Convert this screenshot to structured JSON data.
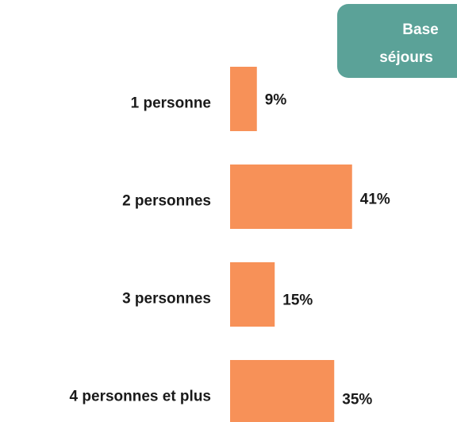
{
  "chart_data": {
    "type": "bar",
    "orientation": "horizontal",
    "annotation": [
      "Base",
      "séjours"
    ],
    "categories": [
      "1 personne",
      "2 personnes",
      "3 personnes",
      "4 personnes et plus"
    ],
    "values": [
      9,
      41,
      15,
      35
    ],
    "value_labels": [
      "9%",
      "41%",
      "15%",
      "35%"
    ],
    "color": "#f79158"
  }
}
